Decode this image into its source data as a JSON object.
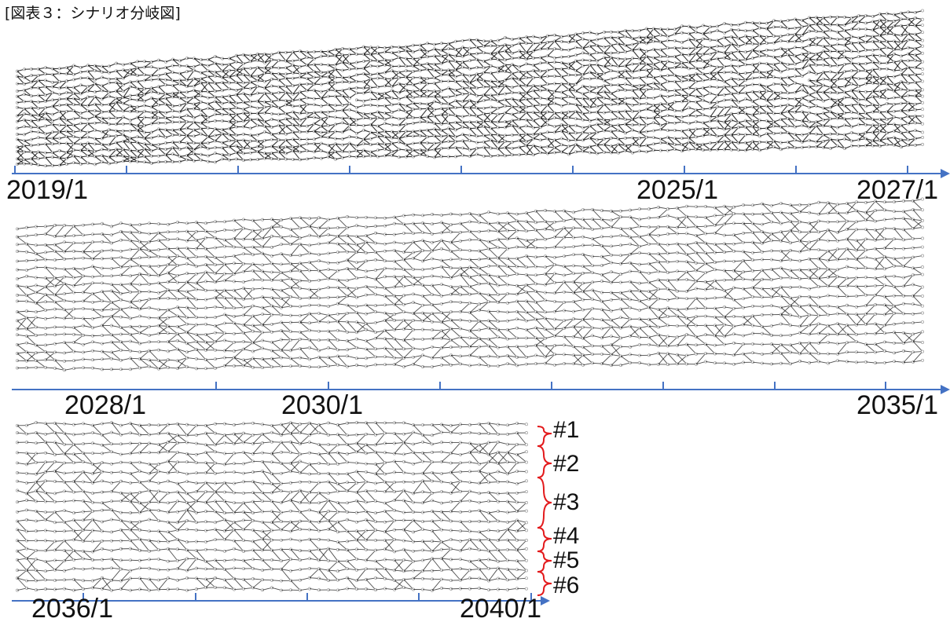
{
  "title": "[図表３：シナリオ分岐図]",
  "colors": {
    "axis": "#4472C4",
    "bracket": "#E31A1C",
    "edge": "#111111",
    "node": "#9a9a9a"
  },
  "panels": [
    {
      "id": "panel-1",
      "labels": [
        "2019/1",
        "2025/1",
        "2027/1"
      ]
    },
    {
      "id": "panel-2",
      "labels": [
        "2028/1",
        "2030/1",
        "2035/1"
      ]
    },
    {
      "id": "panel-3",
      "labels": [
        "2036/1",
        "2040/1"
      ]
    }
  ],
  "scenarios": [
    "#1",
    "#2",
    "#3",
    "#4",
    "#5",
    "#6"
  ]
}
